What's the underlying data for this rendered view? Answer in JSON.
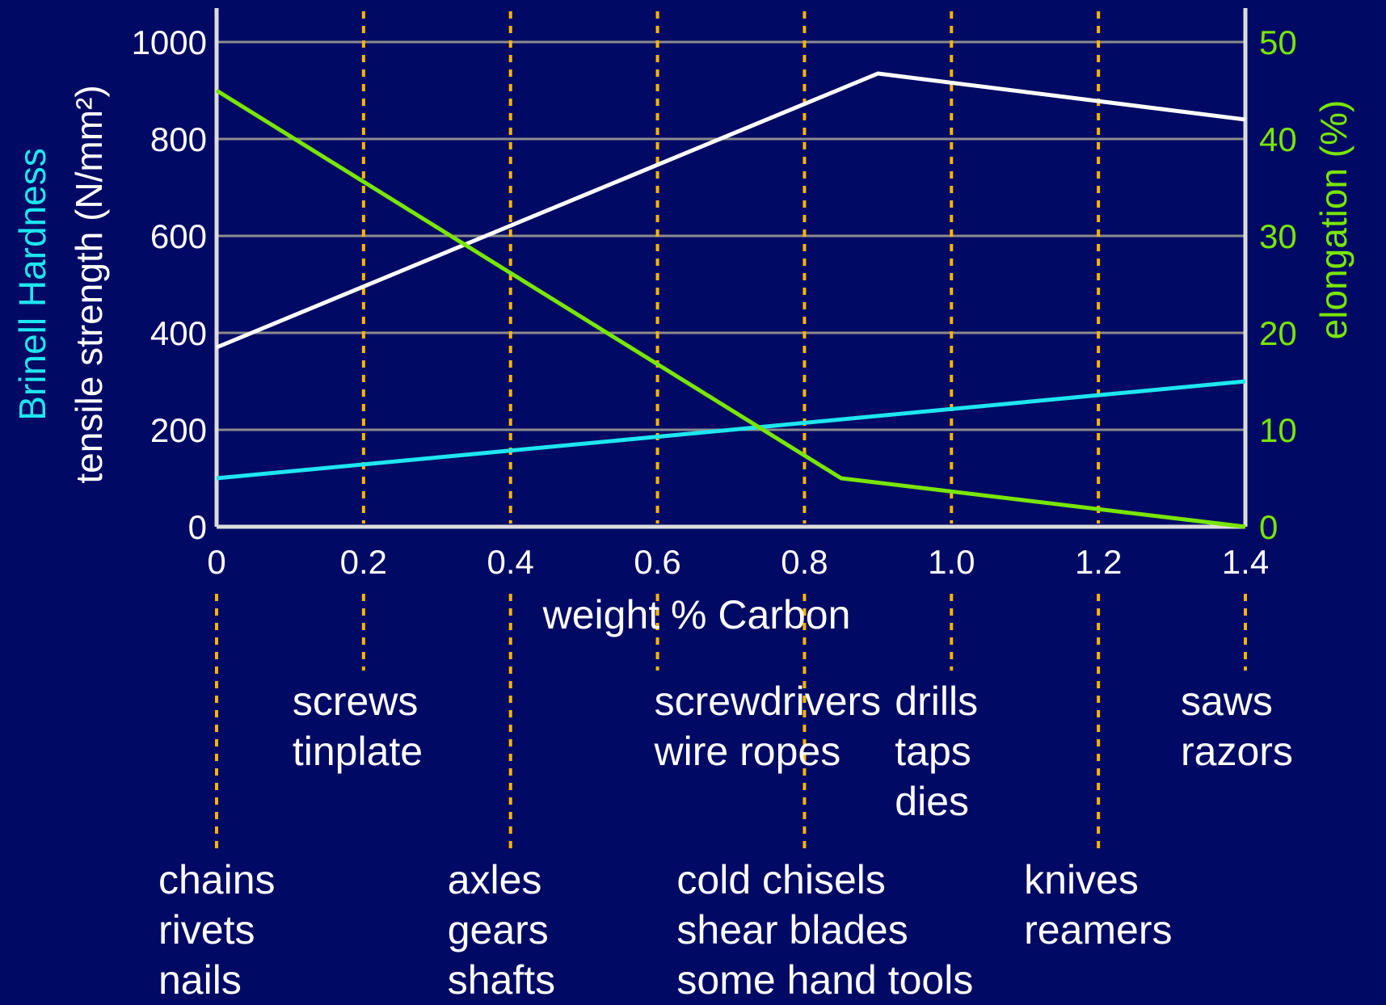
{
  "chart_data": {
    "type": "line",
    "xlabel": "weight % Carbon",
    "x_ticks": [
      "0",
      "0.2",
      "0.4",
      "0.6",
      "0.8",
      "1.0",
      "1.2",
      "1.4"
    ],
    "x_tick_values": [
      0,
      0.2,
      0.4,
      0.6,
      0.8,
      1.0,
      1.2,
      1.4
    ],
    "xlim": [
      0,
      1.4
    ],
    "ylabel_left": [
      "Brinell Hardness",
      "tensile strength (N/mm²)"
    ],
    "ylim_left": [
      0,
      1000
    ],
    "y_ticks_left": [
      "0",
      "200",
      "400",
      "600",
      "800",
      "1000"
    ],
    "ylabel_right": "elongation (%)",
    "ylim_right": [
      0,
      50
    ],
    "y_ticks_right": [
      "0",
      "10",
      "20",
      "30",
      "40",
      "50"
    ],
    "grid": "horizontal",
    "series": [
      {
        "name": "tensile strength (N/mm²)",
        "axis": "left",
        "color": "#ffffff",
        "x": [
          0,
          0.9,
          1.4
        ],
        "y": [
          370,
          935,
          840
        ]
      },
      {
        "name": "Brinell Hardness",
        "axis": "left",
        "color": "#1ee6f0",
        "x": [
          0,
          1.4
        ],
        "y": [
          100,
          300
        ]
      },
      {
        "name": "elongation (%)",
        "axis": "right",
        "color": "#78e600",
        "x": [
          0,
          0.85,
          1.4
        ],
        "y": [
          45,
          5,
          0
        ]
      }
    ],
    "markers": [
      0,
      0.2,
      0.4,
      0.6,
      0.8,
      1.0,
      1.2,
      1.4
    ]
  },
  "applications": [
    {
      "x": 0.2,
      "row": "upper",
      "lines": [
        "screws",
        "tinplate"
      ]
    },
    {
      "x": 0.6,
      "row": "upper",
      "lines": [
        "screwdrivers",
        "wire ropes"
      ]
    },
    {
      "x": 1.0,
      "row": "upper",
      "lines": [
        "drills",
        "taps",
        "dies"
      ]
    },
    {
      "x": 1.4,
      "row": "upper",
      "lines": [
        "saws",
        "razors"
      ]
    },
    {
      "x": 0,
      "row": "lower",
      "lines": [
        "chains",
        "rivets",
        "nails"
      ]
    },
    {
      "x": 0.4,
      "row": "lower",
      "lines": [
        "axles",
        "gears",
        "shafts"
      ]
    },
    {
      "x": 0.8,
      "row": "lower",
      "lines": [
        "cold chisels",
        "shear blades",
        "some hand tools"
      ]
    },
    {
      "x": 1.2,
      "row": "lower",
      "lines": [
        "knives",
        "reamers"
      ]
    }
  ],
  "colors": {
    "background": "#000a64",
    "axis": "#dcdcdc",
    "grid": "#8c8c8c",
    "marker": "#ffb400",
    "left_tick_text": "#ffffff",
    "right_tick_text": "#78e600",
    "hardness_label": "#1ee6f0",
    "elongation_label": "#78e600"
  }
}
